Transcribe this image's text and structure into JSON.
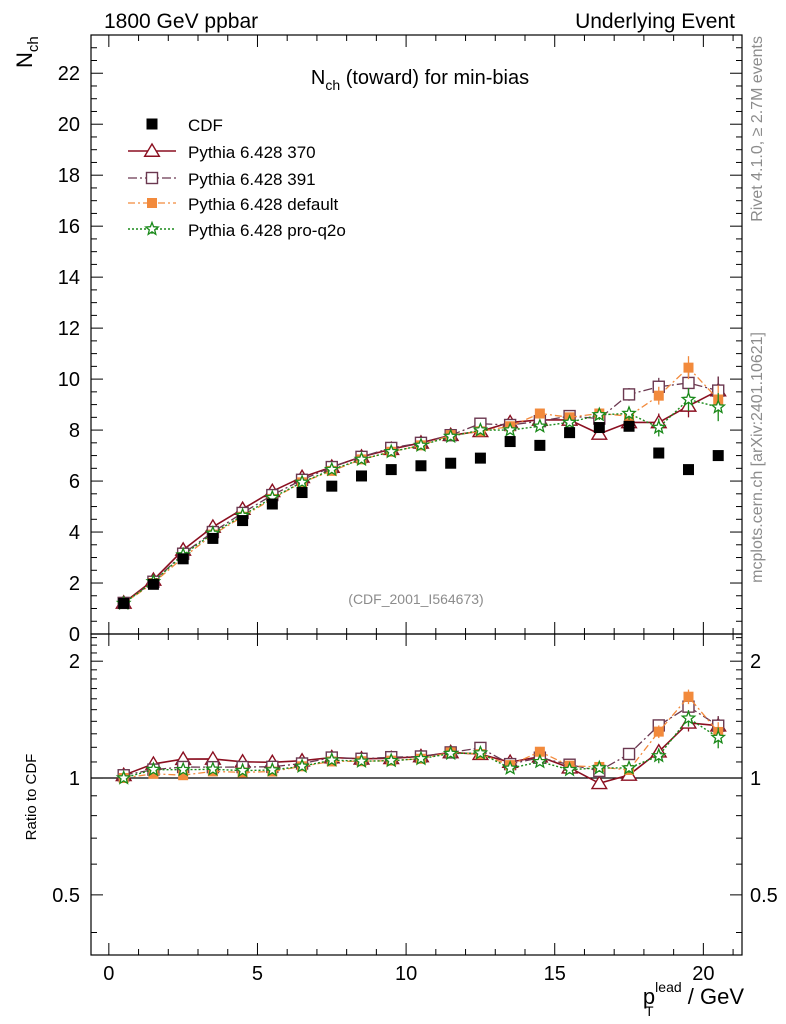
{
  "header": {
    "left": "1800 GeV ppbar",
    "right": "Underlying Event",
    "side_top": "Rivet 4.1.0, ≥ 2.7M events",
    "side_bottom": "mcplots.cern.ch [arXiv:2401.10621]"
  },
  "chart_data": {
    "type": "scatter",
    "title_main": "N",
    "title_sub": "ch",
    "title_rest": " (toward) for min-bias",
    "watermark": "(CDF_2001_I564673)",
    "ylabel_main": "N",
    "ylabel_sub": "ch",
    "ratio_ylabel": "Ratio to CDF",
    "xlabel_p": "p",
    "xlabel_sub": "T",
    "xlabel_sup": "lead",
    "xlabel_rest": " / GeV",
    "xlim": [
      -0.6,
      21.3
    ],
    "ylim": [
      0,
      23.5
    ],
    "ratio_ylim": [
      0.35,
      2.35
    ],
    "x_ticks": [
      0,
      5,
      10,
      15,
      20
    ],
    "y_ticks": [
      0,
      2,
      4,
      6,
      8,
      10,
      12,
      14,
      16,
      18,
      20,
      22
    ],
    "ratio_ticks": [
      0.5,
      1,
      2
    ],
    "ratio_tick_labels": [
      "0.5",
      "1",
      "2"
    ],
    "x": [
      0.5,
      1.5,
      2.5,
      3.5,
      4.5,
      5.5,
      6.5,
      7.5,
      8.5,
      9.5,
      10.5,
      11.5,
      12.5,
      13.5,
      14.5,
      15.5,
      16.5,
      17.5,
      18.5,
      19.5,
      20.5
    ],
    "data": {
      "name": "CDF",
      "values": [
        1.2,
        1.95,
        2.95,
        3.75,
        4.45,
        5.1,
        5.55,
        5.8,
        6.2,
        6.45,
        6.6,
        6.7,
        6.9,
        7.55,
        7.4,
        7.9,
        8.1,
        8.15,
        7.1,
        6.45,
        7.0
      ],
      "errors": [
        0.03,
        0.04,
        0.05,
        0.06,
        0.07,
        0.08,
        0.08,
        0.08,
        0.09,
        0.09,
        0.1,
        0.1,
        0.1,
        0.11,
        0.11,
        0.12,
        0.13,
        0.14,
        0.15,
        0.16,
        0.17
      ]
    },
    "series": [
      {
        "name": "Pythia 6.428 370",
        "color": "#8b0f20",
        "values": [
          1.22,
          2.12,
          3.3,
          4.2,
          4.9,
          5.6,
          6.15,
          6.55,
          6.95,
          7.25,
          7.5,
          7.8,
          7.95,
          8.3,
          8.4,
          8.4,
          7.85,
          8.3,
          8.3,
          8.95,
          9.55
        ],
        "errors": [
          0.02,
          0.03,
          0.03,
          0.04,
          0.04,
          0.05,
          0.05,
          0.05,
          0.06,
          0.06,
          0.07,
          0.08,
          0.09,
          0.1,
          0.12,
          0.15,
          0.2,
          0.25,
          0.35,
          0.45,
          0.55
        ]
      },
      {
        "name": "Pythia 6.428 391",
        "color": "#6b3850",
        "values": [
          1.22,
          2.05,
          3.15,
          4.0,
          4.75,
          5.45,
          6.05,
          6.55,
          6.95,
          7.3,
          7.5,
          7.8,
          8.25,
          8.2,
          8.35,
          8.55,
          8.45,
          9.4,
          9.7,
          9.85,
          9.55
        ],
        "errors": [
          0.02,
          0.03,
          0.03,
          0.04,
          0.04,
          0.05,
          0.05,
          0.05,
          0.06,
          0.06,
          0.07,
          0.08,
          0.09,
          0.1,
          0.12,
          0.15,
          0.2,
          0.25,
          0.35,
          0.45,
          0.55
        ]
      },
      {
        "name": "Pythia 6.428 default",
        "color": "#f28a3c",
        "values": [
          1.2,
          2.0,
          3.0,
          3.9,
          4.6,
          5.3,
          5.95,
          6.4,
          6.85,
          7.15,
          7.4,
          7.8,
          7.95,
          8.15,
          8.65,
          8.5,
          8.65,
          8.55,
          9.35,
          10.45,
          9.2
        ],
        "errors": [
          0.02,
          0.03,
          0.03,
          0.04,
          0.04,
          0.05,
          0.05,
          0.05,
          0.06,
          0.06,
          0.07,
          0.08,
          0.09,
          0.1,
          0.12,
          0.15,
          0.2,
          0.25,
          0.35,
          0.45,
          0.55
        ]
      },
      {
        "name": "Pythia 6.428 pro-q2o",
        "color": "#1a8a1a",
        "values": [
          1.2,
          2.05,
          3.1,
          3.95,
          4.65,
          5.35,
          5.95,
          6.45,
          6.85,
          7.15,
          7.4,
          7.75,
          8.0,
          8.0,
          8.15,
          8.3,
          8.6,
          8.65,
          8.1,
          9.2,
          8.9
        ],
        "errors": [
          0.02,
          0.03,
          0.03,
          0.04,
          0.04,
          0.05,
          0.05,
          0.05,
          0.06,
          0.06,
          0.07,
          0.08,
          0.09,
          0.1,
          0.12,
          0.15,
          0.2,
          0.25,
          0.35,
          0.45,
          0.55
        ]
      }
    ]
  }
}
